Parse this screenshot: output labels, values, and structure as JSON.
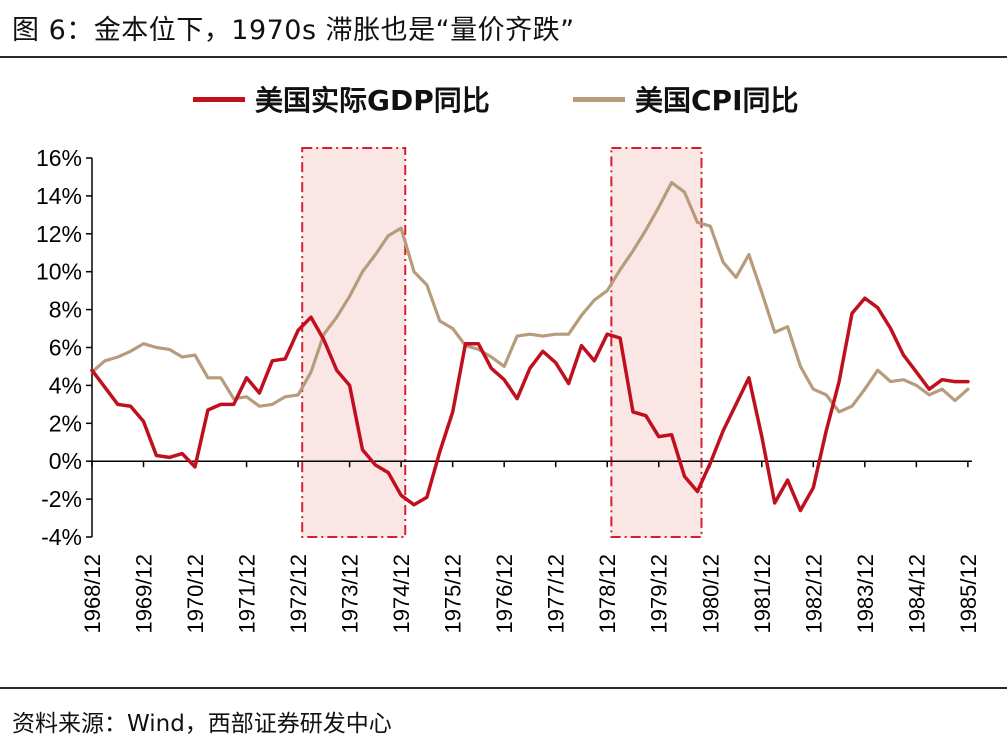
{
  "title": "图 6：金本位下，1970s 滞胀也是“量价齐跌”",
  "source": "资料来源：Wind，西部证券研发中心",
  "colors": {
    "gdp": "#c0101e",
    "cpi": "#b79c7c",
    "shade_fill": "#fbe6e6",
    "shade_border": "#d61f2c",
    "axis": "#000000"
  },
  "chart_data": {
    "type": "line",
    "ylim": [
      -4,
      16
    ],
    "yticks": [
      -4,
      -2,
      0,
      2,
      4,
      6,
      8,
      10,
      12,
      14,
      16
    ],
    "ytick_labels": [
      "-4%",
      "-2%",
      "0%",
      "2%",
      "4%",
      "6%",
      "8%",
      "10%",
      "12%",
      "14%",
      "16%"
    ],
    "xlim": [
      1968.92,
      1986.0
    ],
    "xtick_labels": [
      "1968/12",
      "1969/12",
      "1970/12",
      "1971/12",
      "1972/12",
      "1973/12",
      "1974/12",
      "1975/12",
      "1976/12",
      "1977/12",
      "1978/12",
      "1979/12",
      "1980/12",
      "1981/12",
      "1982/12",
      "1983/12",
      "1984/12",
      "1985/12"
    ],
    "legend_position": "top",
    "grid": false,
    "shaded_periods": [
      {
        "start": 1973.0,
        "end": 1975.0
      },
      {
        "start": 1979.0,
        "end": 1980.75
      }
    ],
    "series": [
      {
        "name": "美国实际GDP同比",
        "color": "#c0101e",
        "x": [
          1968.92,
          1969.17,
          1969.42,
          1969.67,
          1969.92,
          1970.17,
          1970.42,
          1970.67,
          1970.92,
          1971.17,
          1971.42,
          1971.67,
          1971.92,
          1972.17,
          1972.42,
          1972.67,
          1972.92,
          1973.17,
          1973.42,
          1973.67,
          1973.92,
          1974.17,
          1974.42,
          1974.67,
          1974.92,
          1975.17,
          1975.42,
          1975.67,
          1975.92,
          1976.17,
          1976.42,
          1976.67,
          1976.92,
          1977.17,
          1977.42,
          1977.67,
          1977.92,
          1978.17,
          1978.42,
          1978.67,
          1978.92,
          1979.17,
          1979.42,
          1979.67,
          1979.92,
          1980.17,
          1980.42,
          1980.67,
          1980.92,
          1981.17,
          1981.42,
          1981.67,
          1981.92,
          1982.17,
          1982.42,
          1982.67,
          1982.92,
          1983.17,
          1983.42,
          1983.67,
          1983.92,
          1984.17,
          1984.42,
          1984.67,
          1984.92,
          1985.17,
          1985.42,
          1985.67,
          1985.92
        ],
        "values": [
          4.8,
          3.9,
          3.0,
          2.9,
          2.1,
          0.3,
          0.2,
          0.4,
          -0.3,
          2.7,
          3.0,
          3.0,
          4.4,
          3.6,
          5.3,
          5.4,
          6.9,
          7.6,
          6.4,
          4.8,
          4.0,
          0.6,
          -0.2,
          -0.6,
          -1.8,
          -2.3,
          -1.9,
          0.5,
          2.6,
          6.2,
          6.2,
          4.9,
          4.3,
          3.3,
          4.9,
          5.8,
          5.2,
          4.1,
          6.1,
          5.3,
          6.7,
          6.5,
          2.6,
          2.4,
          1.3,
          1.4,
          -0.8,
          -1.6,
          -0.1,
          1.6,
          3.0,
          4.4,
          1.3,
          -2.2,
          -1.0,
          -2.6,
          -1.4,
          1.6,
          4.2,
          7.8,
          8.6,
          8.1,
          7.0,
          5.6,
          4.7,
          3.8,
          4.3,
          4.2,
          4.2
        ]
      },
      {
        "name": "美国CPI同比",
        "color": "#b79c7c",
        "x": [
          1968.92,
          1969.17,
          1969.42,
          1969.67,
          1969.92,
          1970.17,
          1970.42,
          1970.67,
          1970.92,
          1971.17,
          1971.42,
          1971.67,
          1971.92,
          1972.17,
          1972.42,
          1972.67,
          1972.92,
          1973.17,
          1973.42,
          1973.67,
          1973.92,
          1974.17,
          1974.42,
          1974.67,
          1974.92,
          1975.17,
          1975.42,
          1975.67,
          1975.92,
          1976.17,
          1976.42,
          1976.67,
          1976.92,
          1977.17,
          1977.42,
          1977.67,
          1977.92,
          1978.17,
          1978.42,
          1978.67,
          1978.92,
          1979.17,
          1979.42,
          1979.67,
          1979.92,
          1980.17,
          1980.42,
          1980.67,
          1980.92,
          1981.17,
          1981.42,
          1981.67,
          1981.92,
          1982.17,
          1982.42,
          1982.67,
          1982.92,
          1983.17,
          1983.42,
          1983.67,
          1983.92,
          1984.17,
          1984.42,
          1984.67,
          1984.92,
          1985.17,
          1985.42,
          1985.67,
          1985.92
        ],
        "values": [
          4.7,
          5.3,
          5.5,
          5.8,
          6.2,
          6.0,
          5.9,
          5.5,
          5.6,
          4.4,
          4.4,
          3.3,
          3.4,
          2.9,
          3.0,
          3.4,
          3.5,
          4.7,
          6.7,
          7.6,
          8.7,
          10.0,
          10.9,
          11.9,
          12.3,
          10.0,
          9.3,
          7.4,
          7.0,
          6.1,
          5.9,
          5.5,
          5.0,
          6.6,
          6.7,
          6.6,
          6.7,
          6.7,
          7.7,
          8.5,
          9.0,
          10.1,
          11.1,
          12.2,
          13.4,
          14.7,
          14.2,
          12.6,
          12.4,
          10.5,
          9.7,
          10.9,
          8.9,
          6.8,
          7.1,
          5.0,
          3.8,
          3.5,
          2.6,
          2.9,
          3.8,
          4.8,
          4.2,
          4.3,
          4.0,
          3.5,
          3.8,
          3.2,
          3.8
        ]
      }
    ]
  }
}
